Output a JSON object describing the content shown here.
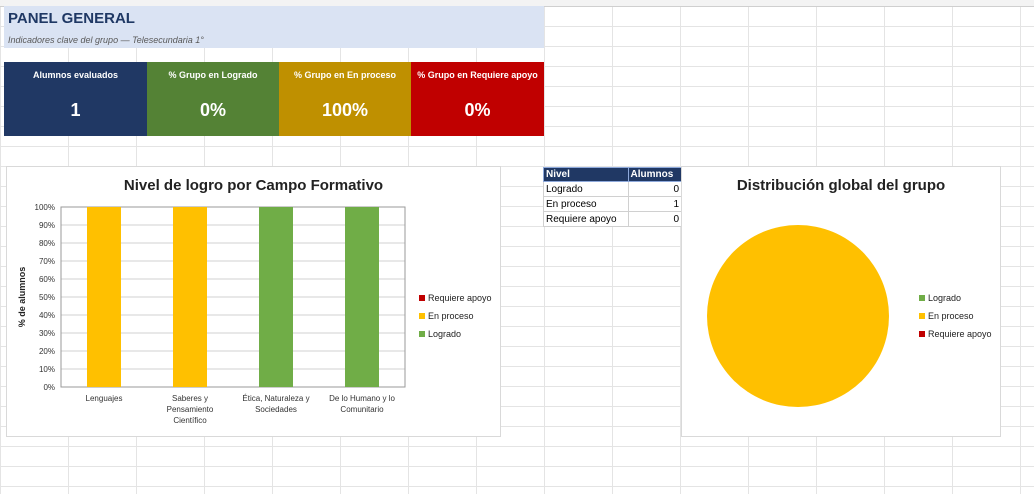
{
  "header": {
    "title": "PANEL GENERAL",
    "subtitle": "Indicadores clave del grupo — Telesecundaria 1°"
  },
  "kpis": [
    {
      "label": "Alumnos evaluados",
      "value": "1"
    },
    {
      "label": "% Grupo en Logrado",
      "value": "0%"
    },
    {
      "label": "% Grupo en En proceso",
      "value": "100%"
    },
    {
      "label": "% Grupo en Requiere apoyo",
      "value": "0%"
    }
  ],
  "colors": {
    "logrado": "#70ad47",
    "en_proceso": "#ffc000",
    "requiere_apoyo": "#c00000",
    "navy": "#203864"
  },
  "summary_table": {
    "headers": [
      "Nivel",
      "Alumnos"
    ],
    "rows": [
      {
        "nivel": "Logrado",
        "alumnos": "0"
      },
      {
        "nivel": "En proceso",
        "alumnos": "1"
      },
      {
        "nivel": "Requiere apoyo",
        "alumnos": "0"
      }
    ]
  },
  "chart_data": [
    {
      "type": "bar",
      "stacked": true,
      "title": "Nivel de logro por Campo Formativo",
      "ylabel": "% de alumnos",
      "xlabel": "",
      "ylim": [
        0,
        100
      ],
      "yticks": [
        "0%",
        "10%",
        "20%",
        "30%",
        "40%",
        "50%",
        "60%",
        "70%",
        "80%",
        "90%",
        "100%"
      ],
      "categories": [
        [
          "Lenguajes"
        ],
        [
          "Saberes y",
          "Pensamiento",
          "Científico"
        ],
        [
          "Ética, Naturaleza y",
          "Sociedades"
        ],
        [
          "De lo Humano y lo",
          "Comunitario"
        ]
      ],
      "series": [
        {
          "name": "Logrado",
          "color": "#70ad47",
          "values": [
            0,
            0,
            100,
            100
          ]
        },
        {
          "name": "En proceso",
          "color": "#ffc000",
          "values": [
            100,
            100,
            0,
            0
          ]
        },
        {
          "name": "Requiere apoyo",
          "color": "#c00000",
          "values": [
            0,
            0,
            0,
            0
          ]
        }
      ],
      "legend_order": [
        "Requiere apoyo",
        "En proceso",
        "Logrado"
      ],
      "legend_position": "right",
      "grid": true
    },
    {
      "type": "pie",
      "title": "Distribución global del grupo",
      "slices": [
        {
          "label": "Logrado",
          "value": 0,
          "color": "#70ad47"
        },
        {
          "label": "En proceso",
          "value": 1,
          "color": "#ffc000"
        },
        {
          "label": "Requiere apoyo",
          "value": 0,
          "color": "#c00000"
        }
      ],
      "legend_position": "right"
    }
  ]
}
